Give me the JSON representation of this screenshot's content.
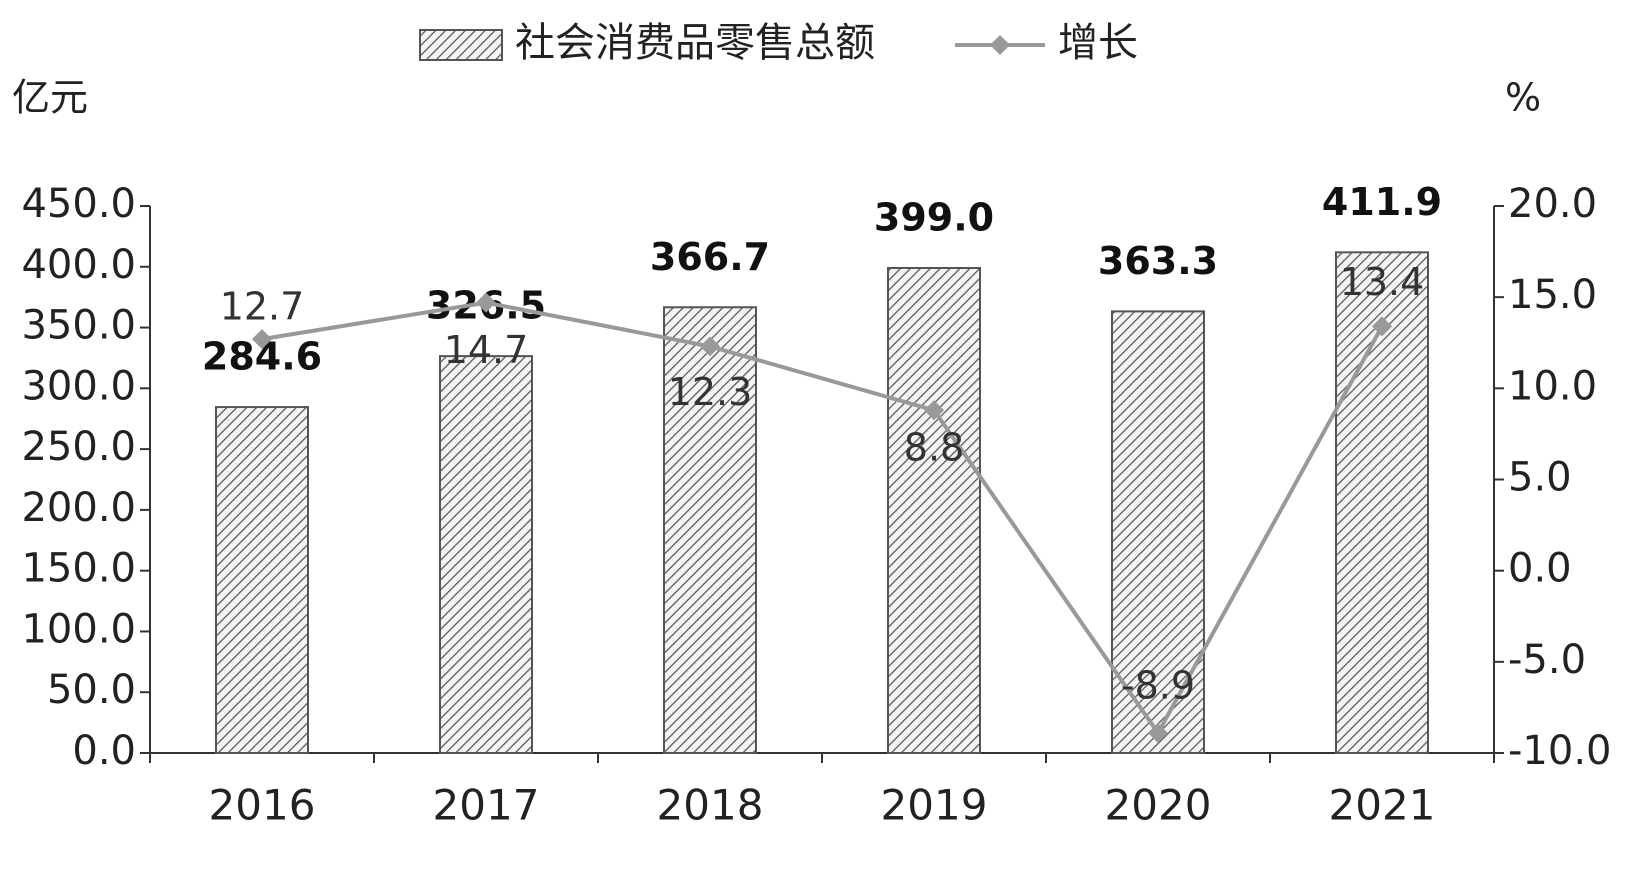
{
  "chart_data": {
    "type": "bar-line",
    "y_label": "亿元",
    "y2_label": "%",
    "categories": [
      "2016",
      "2017",
      "2018",
      "2019",
      "2020",
      "2021"
    ],
    "series": [
      {
        "name": "社会消费品零售总额",
        "type": "bar",
        "color": "#555555",
        "values": [
          284.6,
          326.5,
          366.7,
          399.0,
          363.3,
          411.9
        ],
        "value_labels": [
          "284.6",
          "326.5",
          "366.7",
          "399.0",
          "363.3",
          "411.9"
        ]
      },
      {
        "name": "增长",
        "type": "line",
        "axis": "y2",
        "color": "#999999",
        "values": [
          12.7,
          14.7,
          12.3,
          8.8,
          -8.9,
          13.4
        ]
      }
    ],
    "ylim": [
      0,
      450
    ],
    "yticks": [
      {
        "value": 0,
        "label": "0.0"
      },
      {
        "value": 50,
        "label": "50.0"
      },
      {
        "value": 100,
        "label": "100.0"
      },
      {
        "value": 150,
        "label": "150.0"
      },
      {
        "value": 200,
        "label": "200.0"
      },
      {
        "value": 250,
        "label": "250.0"
      },
      {
        "value": 300,
        "label": "300.0"
      },
      {
        "value": 350,
        "label": "350.0"
      },
      {
        "value": 400,
        "label": "400.0"
      },
      {
        "value": 450,
        "label": "450.0"
      }
    ],
    "y2lim": [
      -10,
      20
    ],
    "y2ticks": [
      {
        "value": -10,
        "label": "-10.0"
      },
      {
        "value": -5,
        "label": "-5.0"
      },
      {
        "value": 0,
        "label": "0.0"
      },
      {
        "value": 5,
        "label": "5.0"
      },
      {
        "value": 10,
        "label": "10.0"
      },
      {
        "value": 15,
        "label": "15.0"
      },
      {
        "value": 20,
        "label": "20.0"
      }
    ],
    "grid": false
  }
}
